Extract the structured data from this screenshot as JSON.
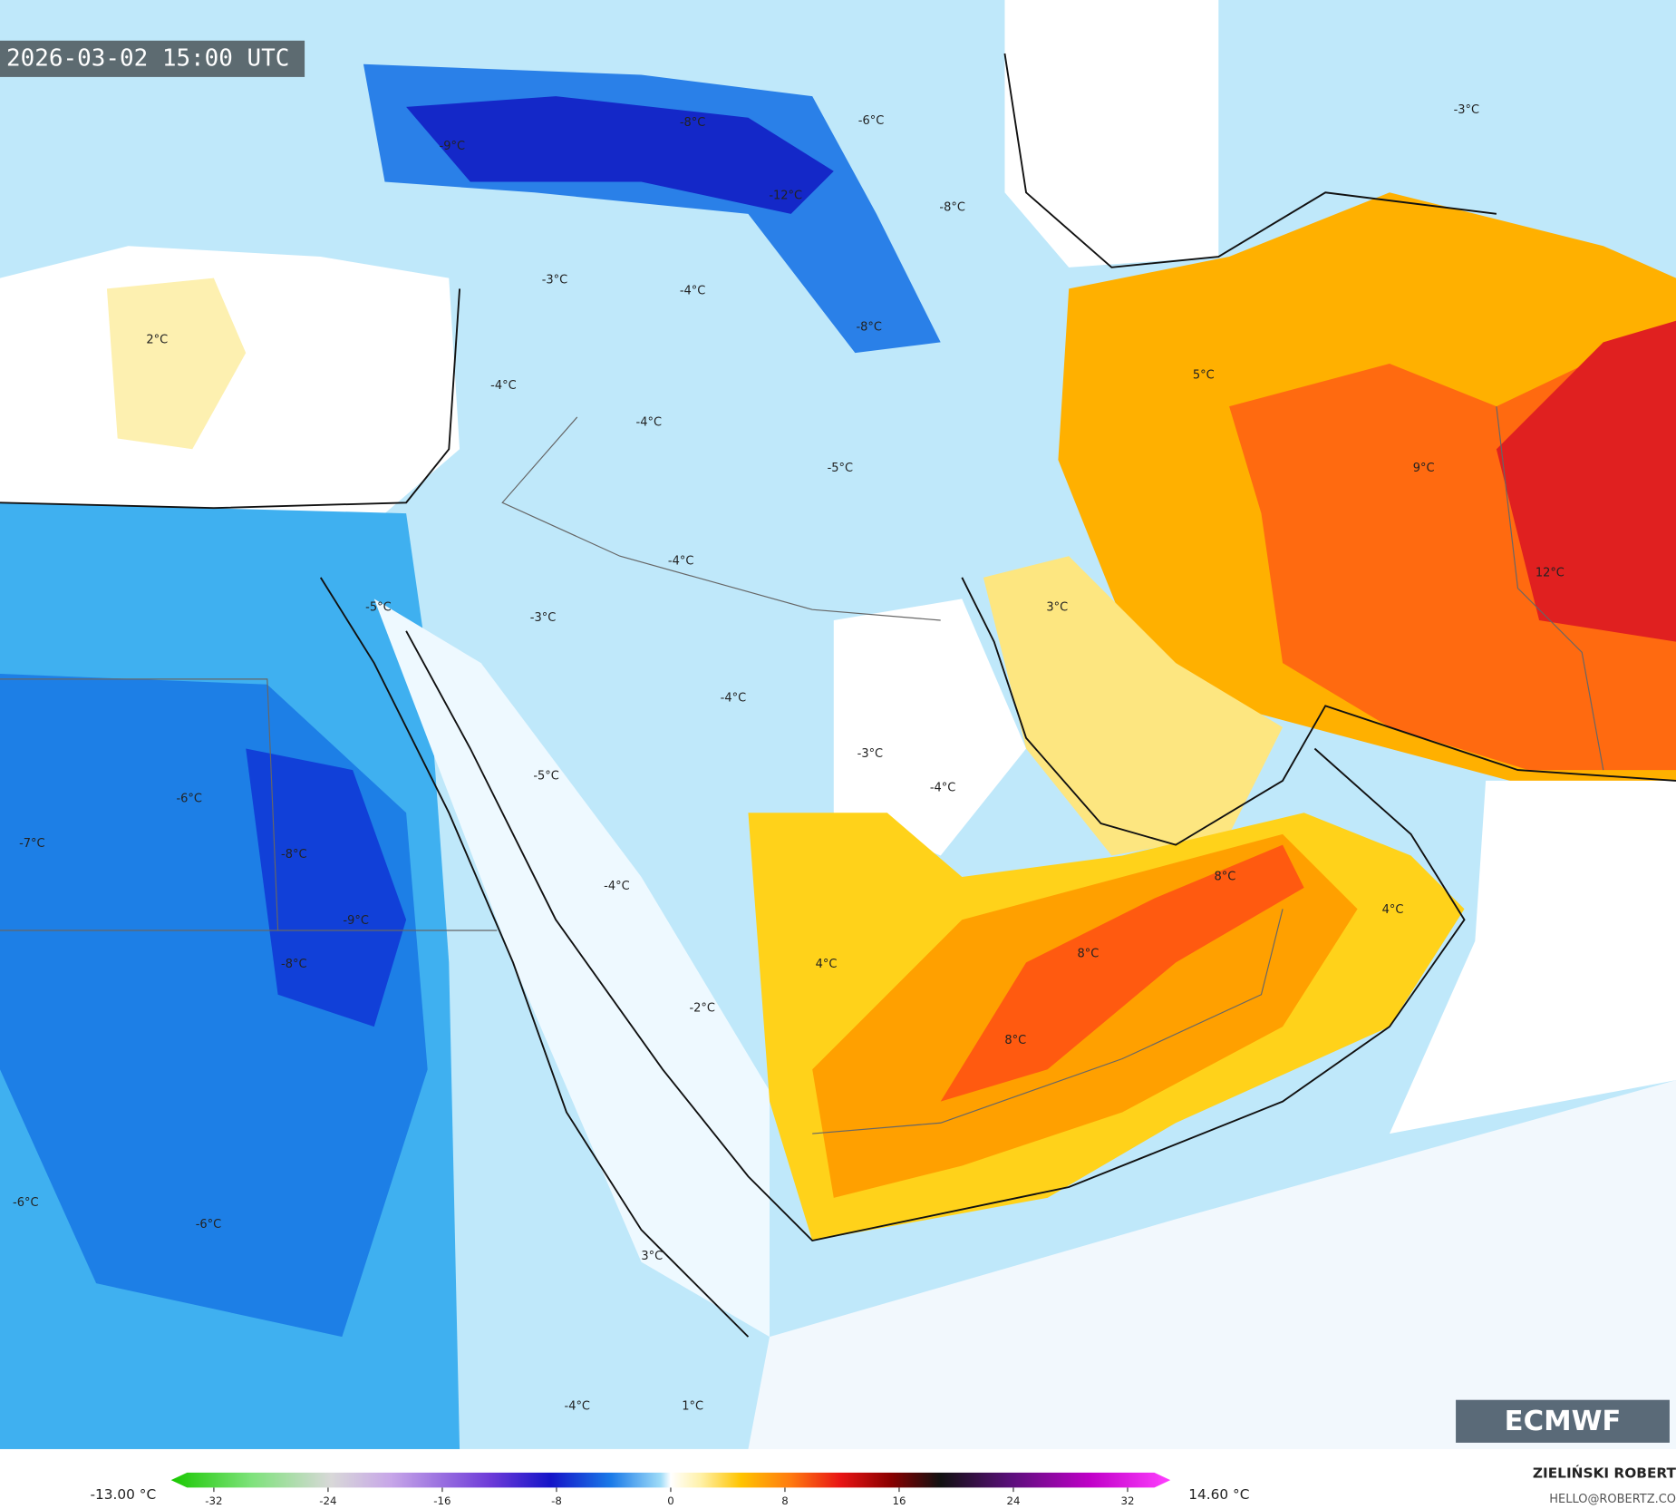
{
  "header": {
    "timestamp": "2026-03-02 15:00 UTC"
  },
  "map": {
    "labels": [
      "-9°C",
      "-8°C",
      "-6°C",
      "-12°C",
      "-8°C",
      "-3°C",
      "-3°C",
      "-4°C",
      "-8°C",
      "2°C",
      "5°C",
      "-4°C",
      "-4°C",
      "-5°C",
      "9°C",
      "-4°C",
      "12°C",
      "3°C",
      "-5°C",
      "-3°C",
      "-4°C",
      "-3°C",
      "-4°C",
      "-5°C",
      "-6°C",
      "-7°C",
      "-8°C",
      "8°C",
      "4°C",
      "-4°C",
      "-9°C",
      "-8°C",
      "8°C",
      "4°C",
      "-2°C",
      "8°C",
      "-6°C",
      "-6°C",
      "3°C",
      "-4°C",
      "1°C"
    ]
  },
  "colorbar": {
    "min_label": "-13.00 °C",
    "max_label": "14.60 °C",
    "ticks": [
      -32,
      -24,
      -16,
      -8,
      0,
      8,
      16,
      24,
      32
    ],
    "lim": [
      -35,
      35
    ]
  },
  "branding": {
    "logo": "ECMWF",
    "author": "ZIELIŃSKI ROBERT",
    "email": "HELLO@ROBERTZ.CO"
  }
}
